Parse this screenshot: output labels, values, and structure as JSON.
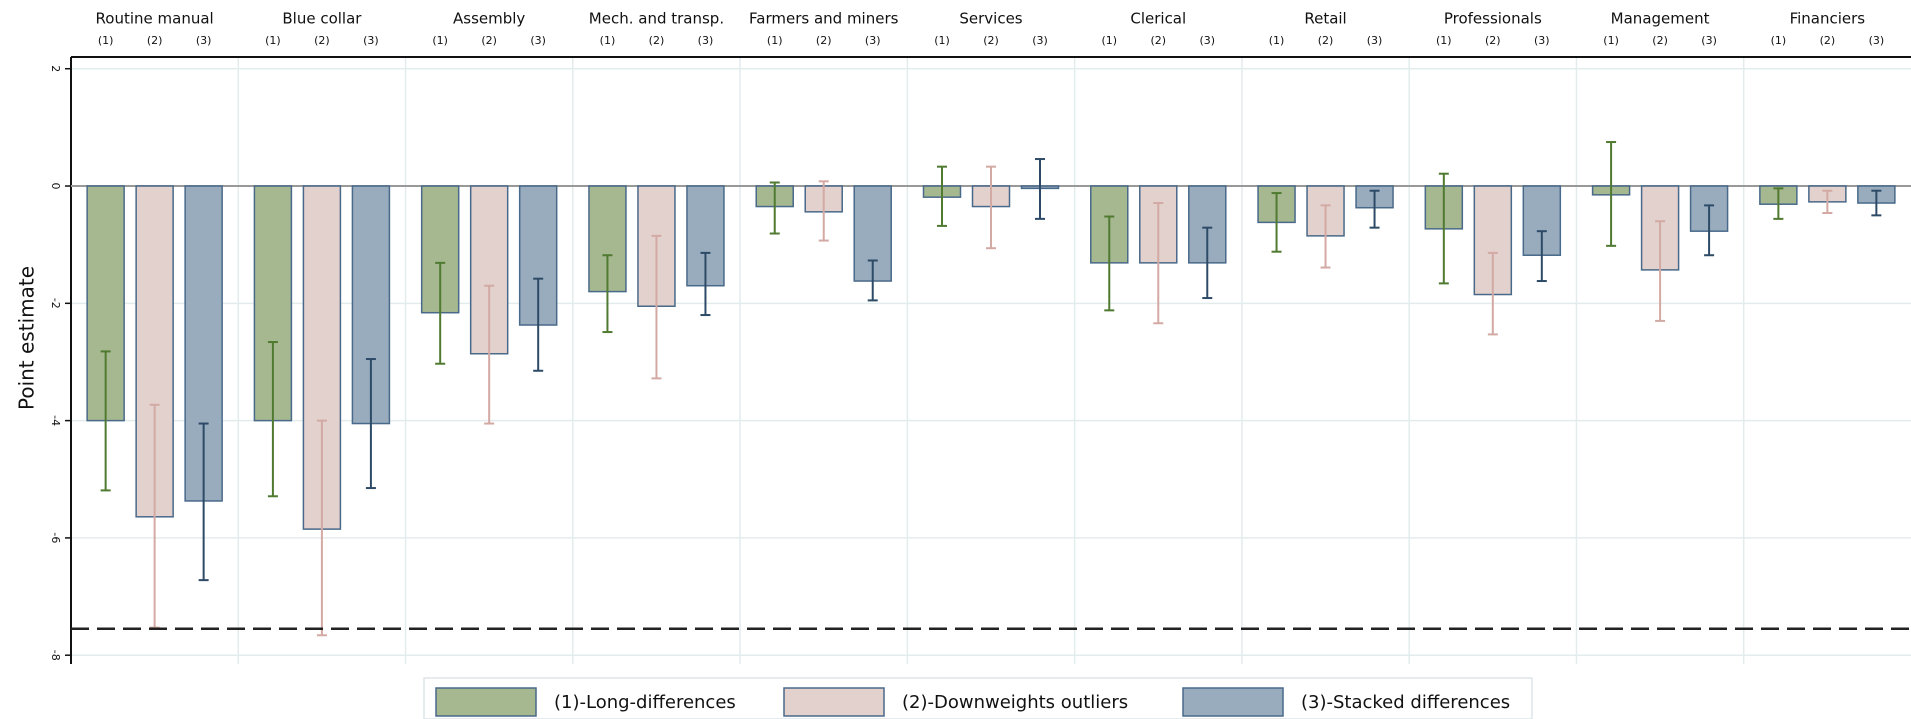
{
  "chart_data": {
    "type": "bar",
    "y_label": "Point estimate",
    "categories": [
      "Routine manual",
      "Blue collar",
      "Assembly",
      "Mech. and transp.",
      "Farmers and miners",
      "Services",
      "Clerical",
      "Retail",
      "Professionals",
      "Management",
      "Financiers"
    ],
    "subcategories": [
      "(1)",
      "(2)",
      "(3)"
    ],
    "series": [
      {
        "name": "(1)-Long-differences",
        "color": "#a6b890",
        "error_color": "#4f7a30",
        "values": [
          -4.0,
          -4.0,
          -2.16,
          -1.8,
          -0.35,
          -0.19,
          -1.31,
          -0.62,
          -0.73,
          -0.15,
          -0.31
        ],
        "lower": [
          -5.19,
          -5.29,
          -3.03,
          -2.49,
          -0.81,
          -0.68,
          -2.12,
          -1.12,
          -1.66,
          -1.02,
          -0.56
        ],
        "upper": [
          -2.82,
          -2.66,
          -1.31,
          -1.18,
          0.06,
          0.33,
          -0.52,
          -0.12,
          0.21,
          0.75,
          -0.04
        ]
      },
      {
        "name": "(2)-Downweights outliers",
        "color": "#e3d1cd",
        "error_color": "#d3a9a4",
        "values": [
          -5.64,
          -5.85,
          -2.86,
          -2.05,
          -0.44,
          -0.35,
          -1.31,
          -0.85,
          -1.85,
          -1.43,
          -0.27
        ],
        "lower": [
          -7.53,
          -7.66,
          -4.05,
          -3.28,
          -0.93,
          -1.06,
          -2.34,
          -1.39,
          -2.53,
          -2.3,
          -0.46
        ],
        "upper": [
          -3.73,
          -4.0,
          -1.7,
          -0.85,
          0.08,
          0.33,
          -0.29,
          -0.33,
          -1.14,
          -0.6,
          -0.08
        ]
      },
      {
        "name": "(3)-Stacked differences",
        "color": "#99acbe",
        "error_color": "#2d4b67",
        "values": [
          -5.37,
          -4.05,
          -2.37,
          -1.7,
          -1.62,
          -0.04,
          -1.31,
          -0.37,
          -1.18,
          -0.77,
          -0.29
        ],
        "lower": [
          -6.72,
          -5.15,
          -3.15,
          -2.2,
          -1.95,
          -0.56,
          -1.91,
          -0.71,
          -1.62,
          -1.18,
          -0.5
        ],
        "upper": [
          -4.05,
          -2.95,
          -1.58,
          -1.14,
          -1.27,
          0.46,
          -0.71,
          -0.08,
          -0.77,
          -0.33,
          -0.08
        ]
      }
    ],
    "reference_line": -7.55,
    "ylim": [
      -8.15,
      2.2
    ],
    "yticks": [
      -8,
      -6,
      -4,
      -2,
      0,
      2
    ],
    "grid": true
  }
}
